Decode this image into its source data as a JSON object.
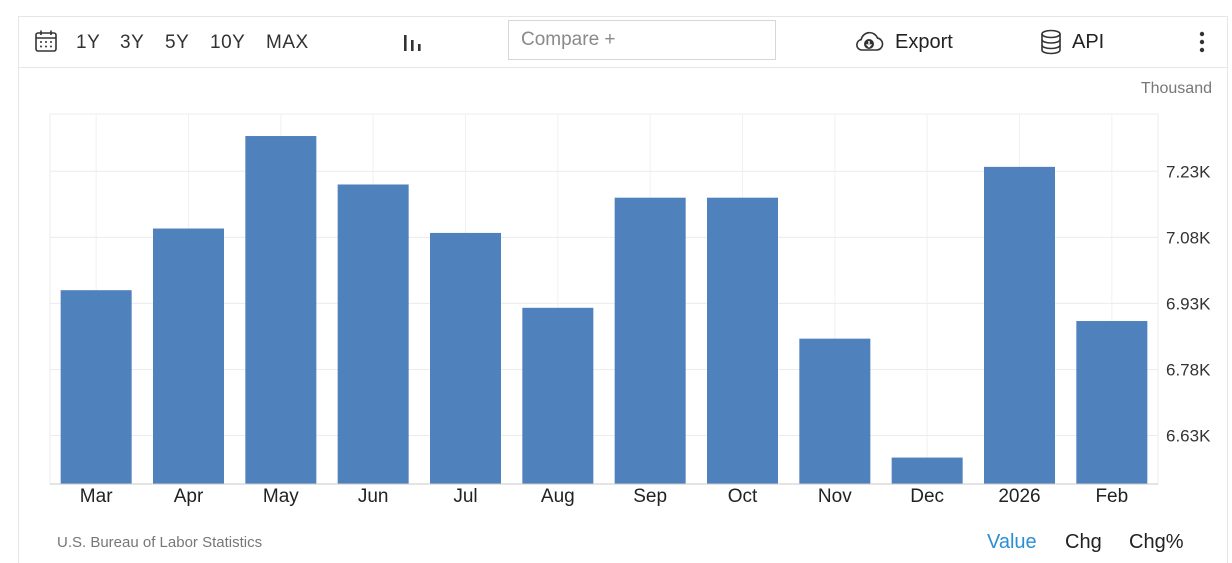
{
  "toolbar": {
    "ranges": [
      "1Y",
      "3Y",
      "5Y",
      "10Y",
      "MAX"
    ],
    "compare_placeholder": "Compare +",
    "export_label": "Export",
    "api_label": "API"
  },
  "unit_label": "Thousand",
  "source": "U.S. Bureau of Labor Statistics",
  "view_tabs": {
    "active": "Value",
    "items": [
      "Value",
      "Chg",
      "Chg%"
    ]
  },
  "colors": {
    "bar": "#4f81bd",
    "active_tab": "#2b8fd6",
    "grid": "#ececec"
  },
  "chart_data": {
    "type": "bar",
    "categories": [
      "Mar",
      "Apr",
      "May",
      "Jun",
      "Jul",
      "Aug",
      "Sep",
      "Oct",
      "Nov",
      "Dec",
      "2026",
      "Feb"
    ],
    "values": [
      6.96,
      7.1,
      7.31,
      7.2,
      7.09,
      6.92,
      7.17,
      7.17,
      6.85,
      6.58,
      7.24,
      6.89
    ],
    "yticks": [
      6.63,
      6.78,
      6.93,
      7.08,
      7.23
    ],
    "ytick_labels": [
      "6.63K",
      "6.78K",
      "6.93K",
      "7.08K",
      "7.23K"
    ],
    "ylim": [
      6.52,
      7.36
    ],
    "grid": true,
    "legend": "none",
    "ylabel": "Thousand"
  }
}
